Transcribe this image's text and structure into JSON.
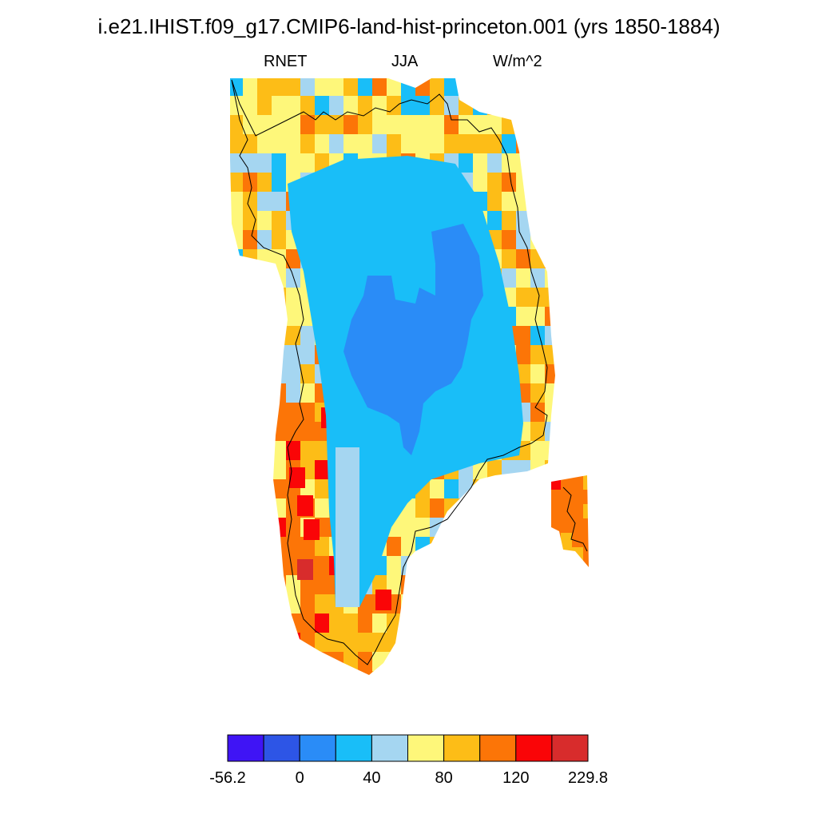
{
  "title": "i.e21.IHIST.f09_g17.CMIP6-land-hist-princeton.001 (yrs 1850-1884)",
  "subtitle": {
    "variable": "RNET",
    "season": "JJA",
    "units": "W/m^2"
  },
  "colorbar": {
    "colors": [
      "#3f14f5",
      "#2d55e6",
      "#2a8cf7",
      "#19bef8",
      "#a5d6f1",
      "#fef77a",
      "#fdbd17",
      "#fc7507",
      "#fa0507",
      "#d82c2c"
    ],
    "labels": [
      "-56.2",
      "0",
      "40",
      "80",
      "120",
      "229.8"
    ]
  },
  "legend_meaning": [
    "coastline: black outline"
  ]
}
